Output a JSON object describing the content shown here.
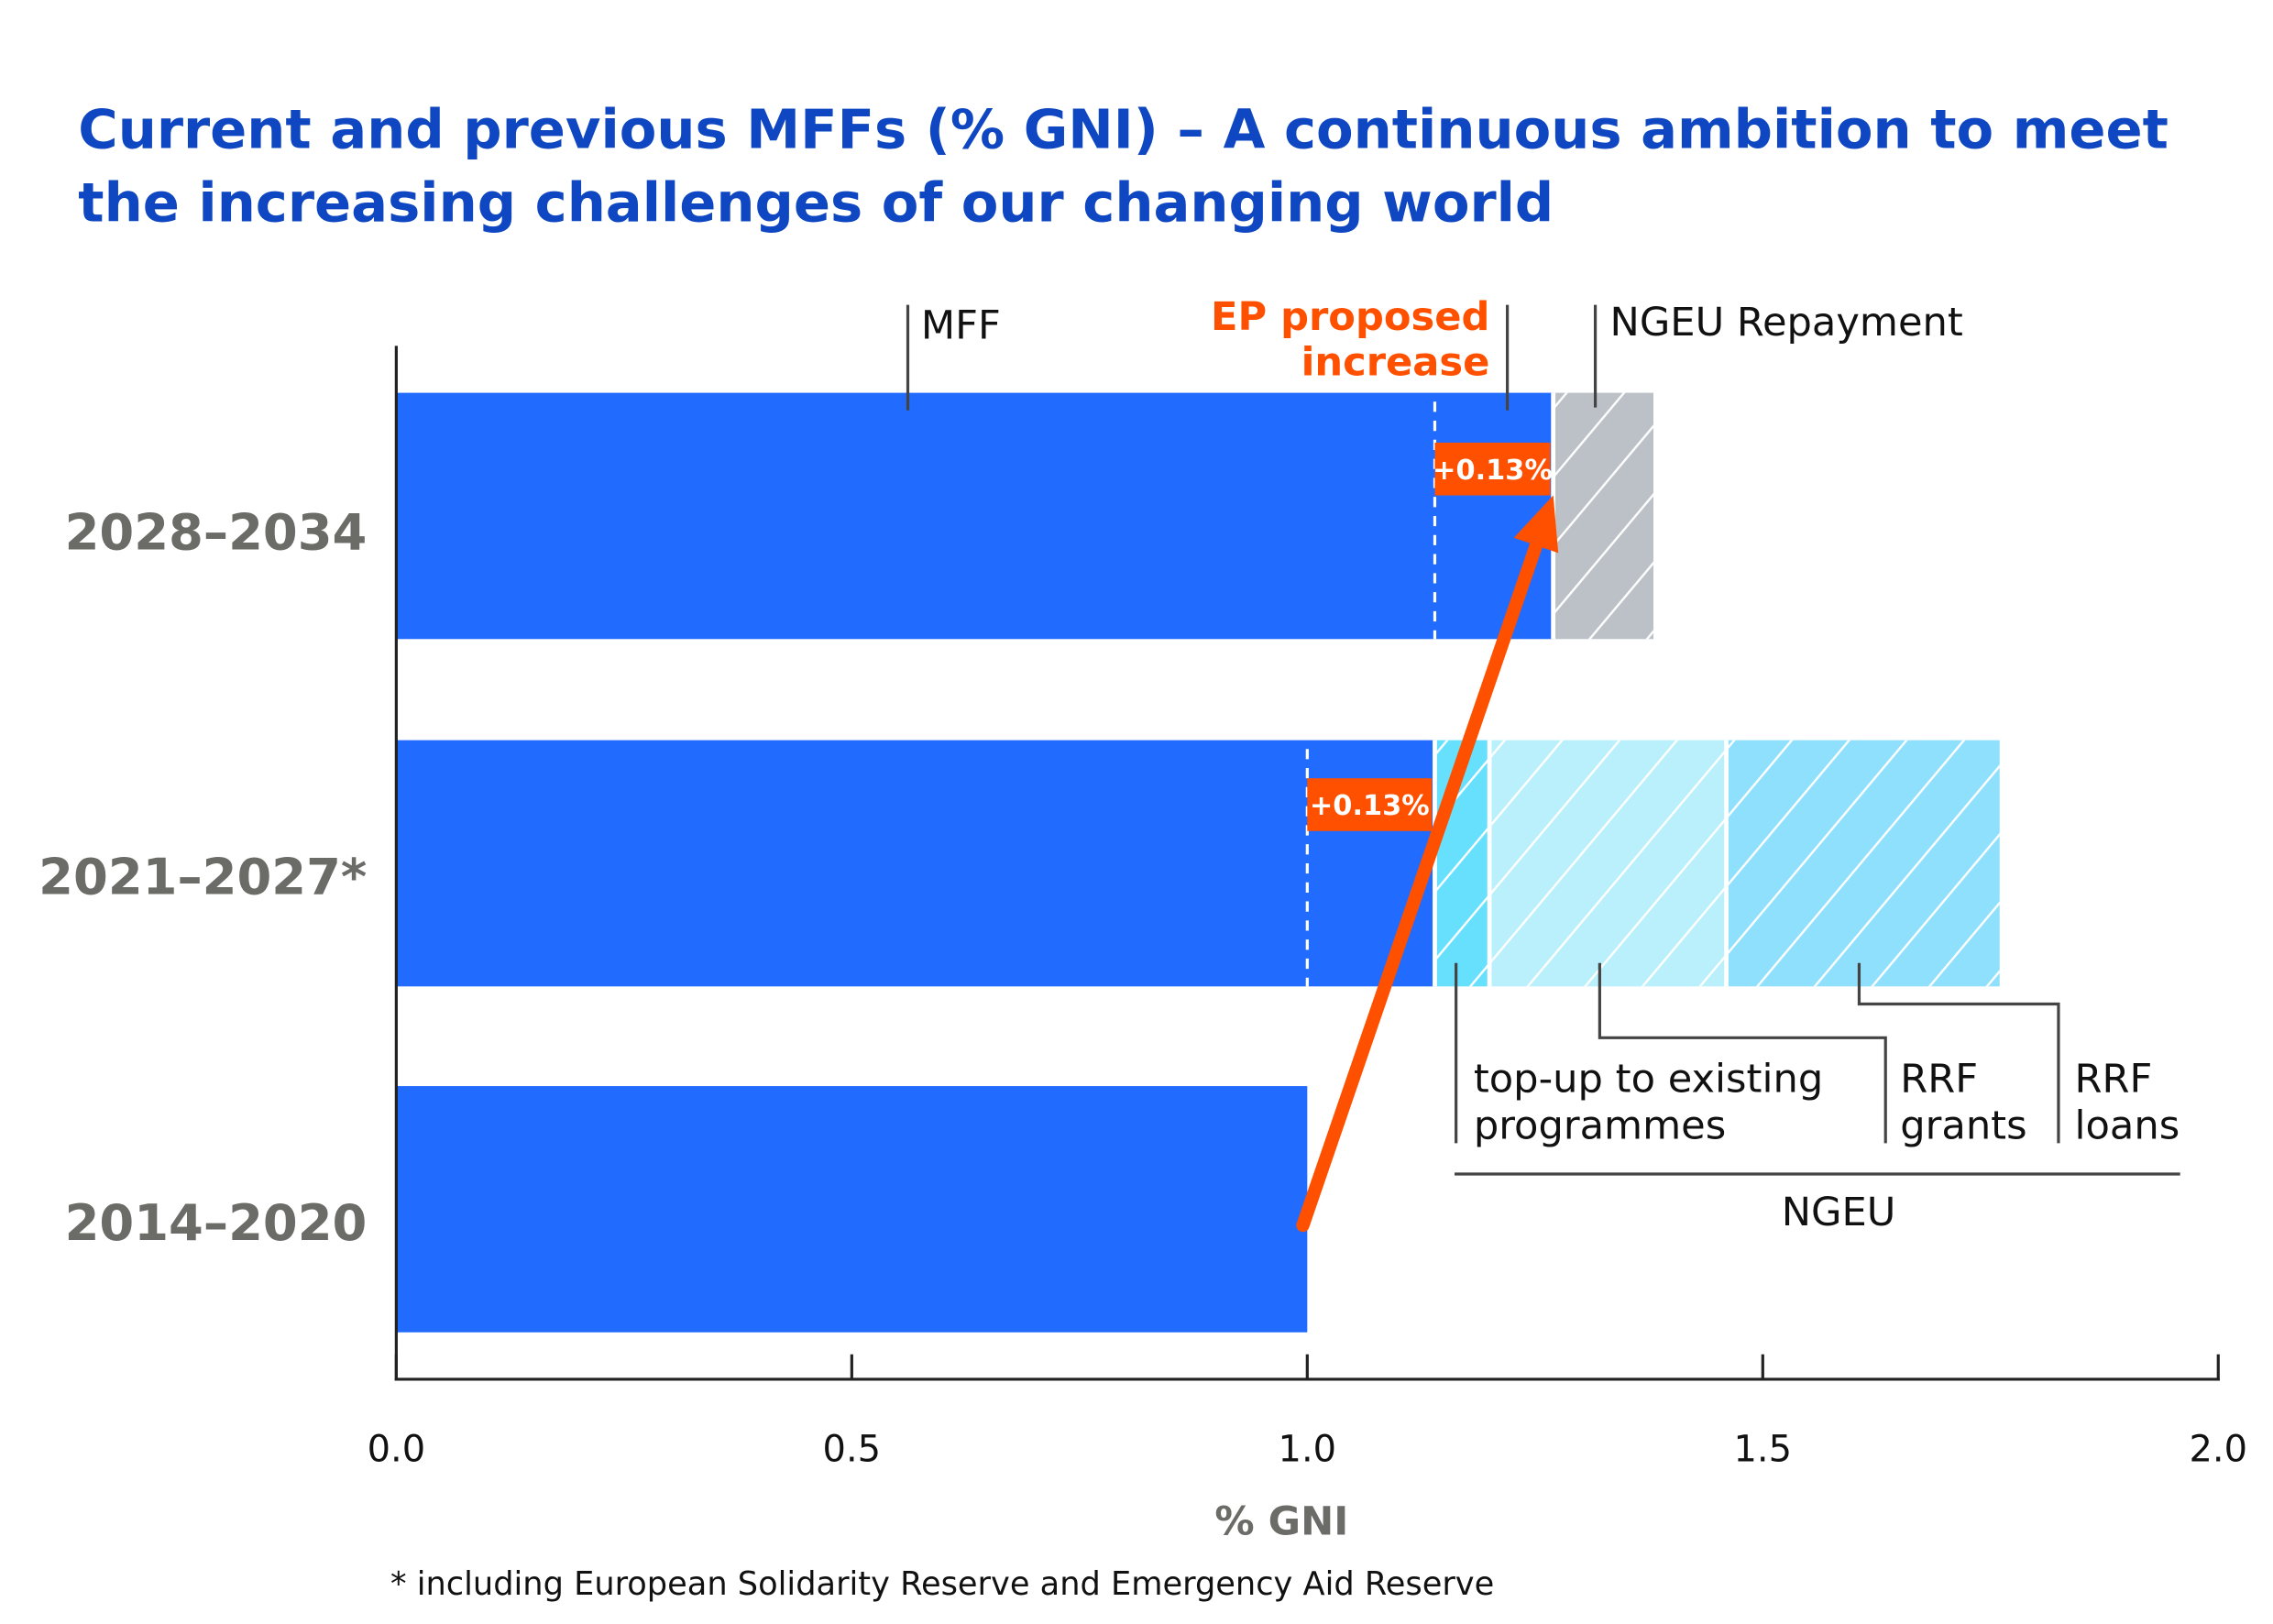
{
  "chart_data": {
    "type": "bar",
    "orientation": "horizontal",
    "stacked": true,
    "title": "Current and previous MFFs (% GNI) – A continuous ambition to meet the increasing challenges of our changing world",
    "title_lines": [
      "Current and previous MFFs (% GNI) – A continuous ambition to meet",
      "the increasing challenges of our changing world"
    ],
    "xlabel": "% GNI",
    "xlim": [
      0,
      2.0
    ],
    "x_ticks": [
      "0.0",
      "0.5",
      "1.0",
      "1.5",
      "2.0"
    ],
    "grid": false,
    "categories": [
      "2028–2034",
      "2021–2027*",
      "2014–2020"
    ],
    "segments": [
      {
        "category": "2028–2034",
        "component": "MFF",
        "start": 0,
        "end": 1.27,
        "color": "#216bff",
        "hatched": false
      },
      {
        "category": "2028–2034",
        "component": "NGEU Repayment",
        "start": 1.27,
        "end": 1.38,
        "color": "#bbc1c6",
        "hatched": true
      },
      {
        "category": "2021–2027*",
        "component": "MFF",
        "start": 0,
        "end": 1.14,
        "color": "#216bff",
        "hatched": false
      },
      {
        "category": "2021–2027*",
        "component": "top-up to existing programmes",
        "start": 1.14,
        "end": 1.2,
        "color": "#66e0fd",
        "hatched": true
      },
      {
        "category": "2021–2027*",
        "component": "RRF grants",
        "start": 1.2,
        "end": 1.46,
        "color": "#b9f0fc",
        "hatched": true
      },
      {
        "category": "2021–2027*",
        "component": "RRF loans",
        "start": 1.46,
        "end": 1.76,
        "color": "#8fe0fd",
        "hatched": true
      },
      {
        "category": "2014–2020",
        "component": "MFF",
        "start": 0,
        "end": 1.0,
        "color": "#216bff",
        "hatched": false
      }
    ],
    "reference_lines": [
      {
        "category": "2028–2034",
        "value": 1.14
      },
      {
        "category": "2021–2027*",
        "value": 1.0
      }
    ],
    "badges": [
      {
        "category": "2028–2034",
        "text": "+0.13%"
      },
      {
        "category": "2021–2027*",
        "text": "+0.13%"
      }
    ],
    "annotations": {
      "mff": "MFF",
      "ep_line1": "EP proposed",
      "ep_line2": "increase",
      "repayment": "NGEU Repayment",
      "topup_line1": "top-up to existing",
      "topup_line2": "programmes",
      "grants_line1": "RRF",
      "grants_line2": "grants",
      "loans_line1": "RRF",
      "loans_line2": "loans",
      "ngeu": "NGEU"
    },
    "arrow": {
      "from": {
        "category": "2014–2020",
        "value": 1.0
      },
      "to": {
        "category": "2028–2034",
        "value": 1.27
      },
      "color": "#ff5000"
    },
    "footnote": "* including European Solidarity Reserve and Emergency Aid Reserve"
  }
}
